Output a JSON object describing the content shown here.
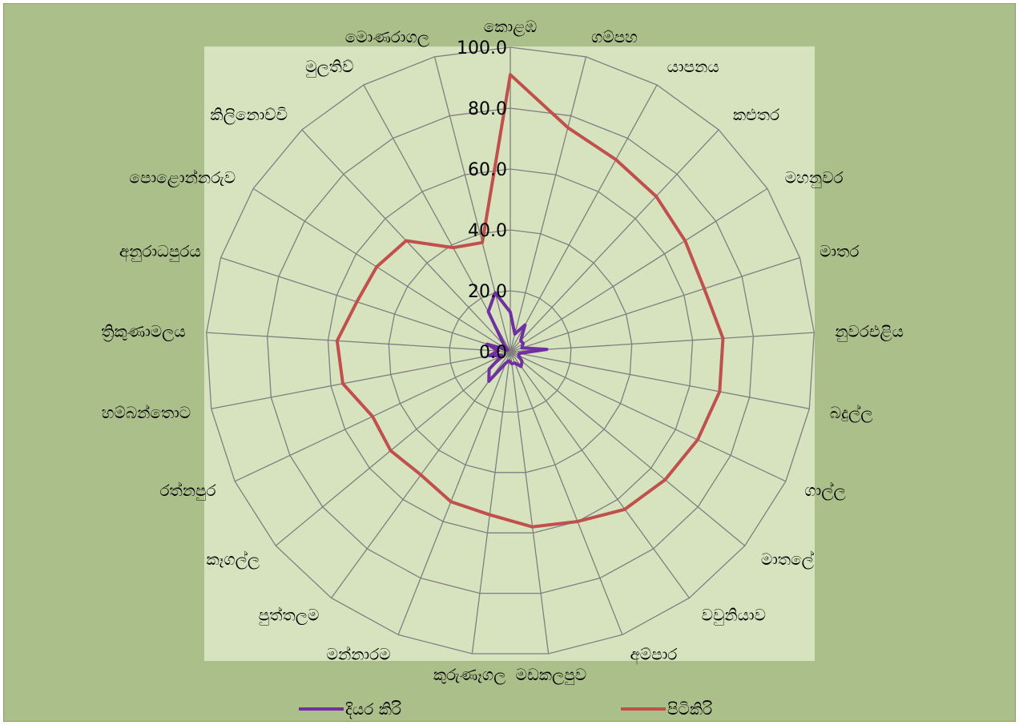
{
  "chart_data": {
    "type": "radar",
    "categories": [
      "කොළඹ",
      "ගම්පහ",
      "යාපනය",
      "කළුතර",
      "මහනුවර",
      "මාතර",
      "නුවරඑළිය",
      "බදුල්ල",
      "ගාල්ල",
      "මාතලේ",
      "වවුනියාව",
      "අම්පාර",
      "මඩකලපුව",
      "කුරුණෑගල",
      "මන්නාරම",
      "පුත්තලම",
      "කෑගල්ල",
      "රත්නපුර",
      "හම්බන්තොට",
      "ත්‍රිකුණාමලය",
      "අනුරාධපුරය",
      "පොළොන්නරුව",
      "කිලිනොච්චි",
      "මුලතිව්",
      "මොණරාගල"
    ],
    "series": [
      {
        "name": "දියර කිරි",
        "color": "#7030a0",
        "values": [
          13,
          6,
          10,
          5,
          5,
          4,
          12,
          3,
          3,
          5,
          6,
          4,
          4,
          3,
          4,
          12,
          9,
          3,
          7,
          4,
          8,
          1,
          3,
          15,
          20
        ]
      },
      {
        "name": "පිටිකිරි",
        "color": "#c0504d",
        "values": [
          91,
          76,
          72,
          70,
          68,
          67,
          70,
          70,
          68,
          66,
          64,
          60,
          58,
          54,
          53,
          50,
          51,
          50,
          56,
          57,
          53,
          52,
          50,
          39,
          37
        ]
      }
    ],
    "r_axis": {
      "min": 0,
      "max": 100,
      "ticks": [
        "0.0",
        "20.0",
        "40.0",
        "60.0",
        "80.0",
        "100.0"
      ]
    },
    "grid": true,
    "legend": "bottom",
    "colors": {
      "frame_bg": "#abbf8a",
      "plot_bg": "#d7e2bf",
      "grid": "#7f7f7f"
    }
  }
}
